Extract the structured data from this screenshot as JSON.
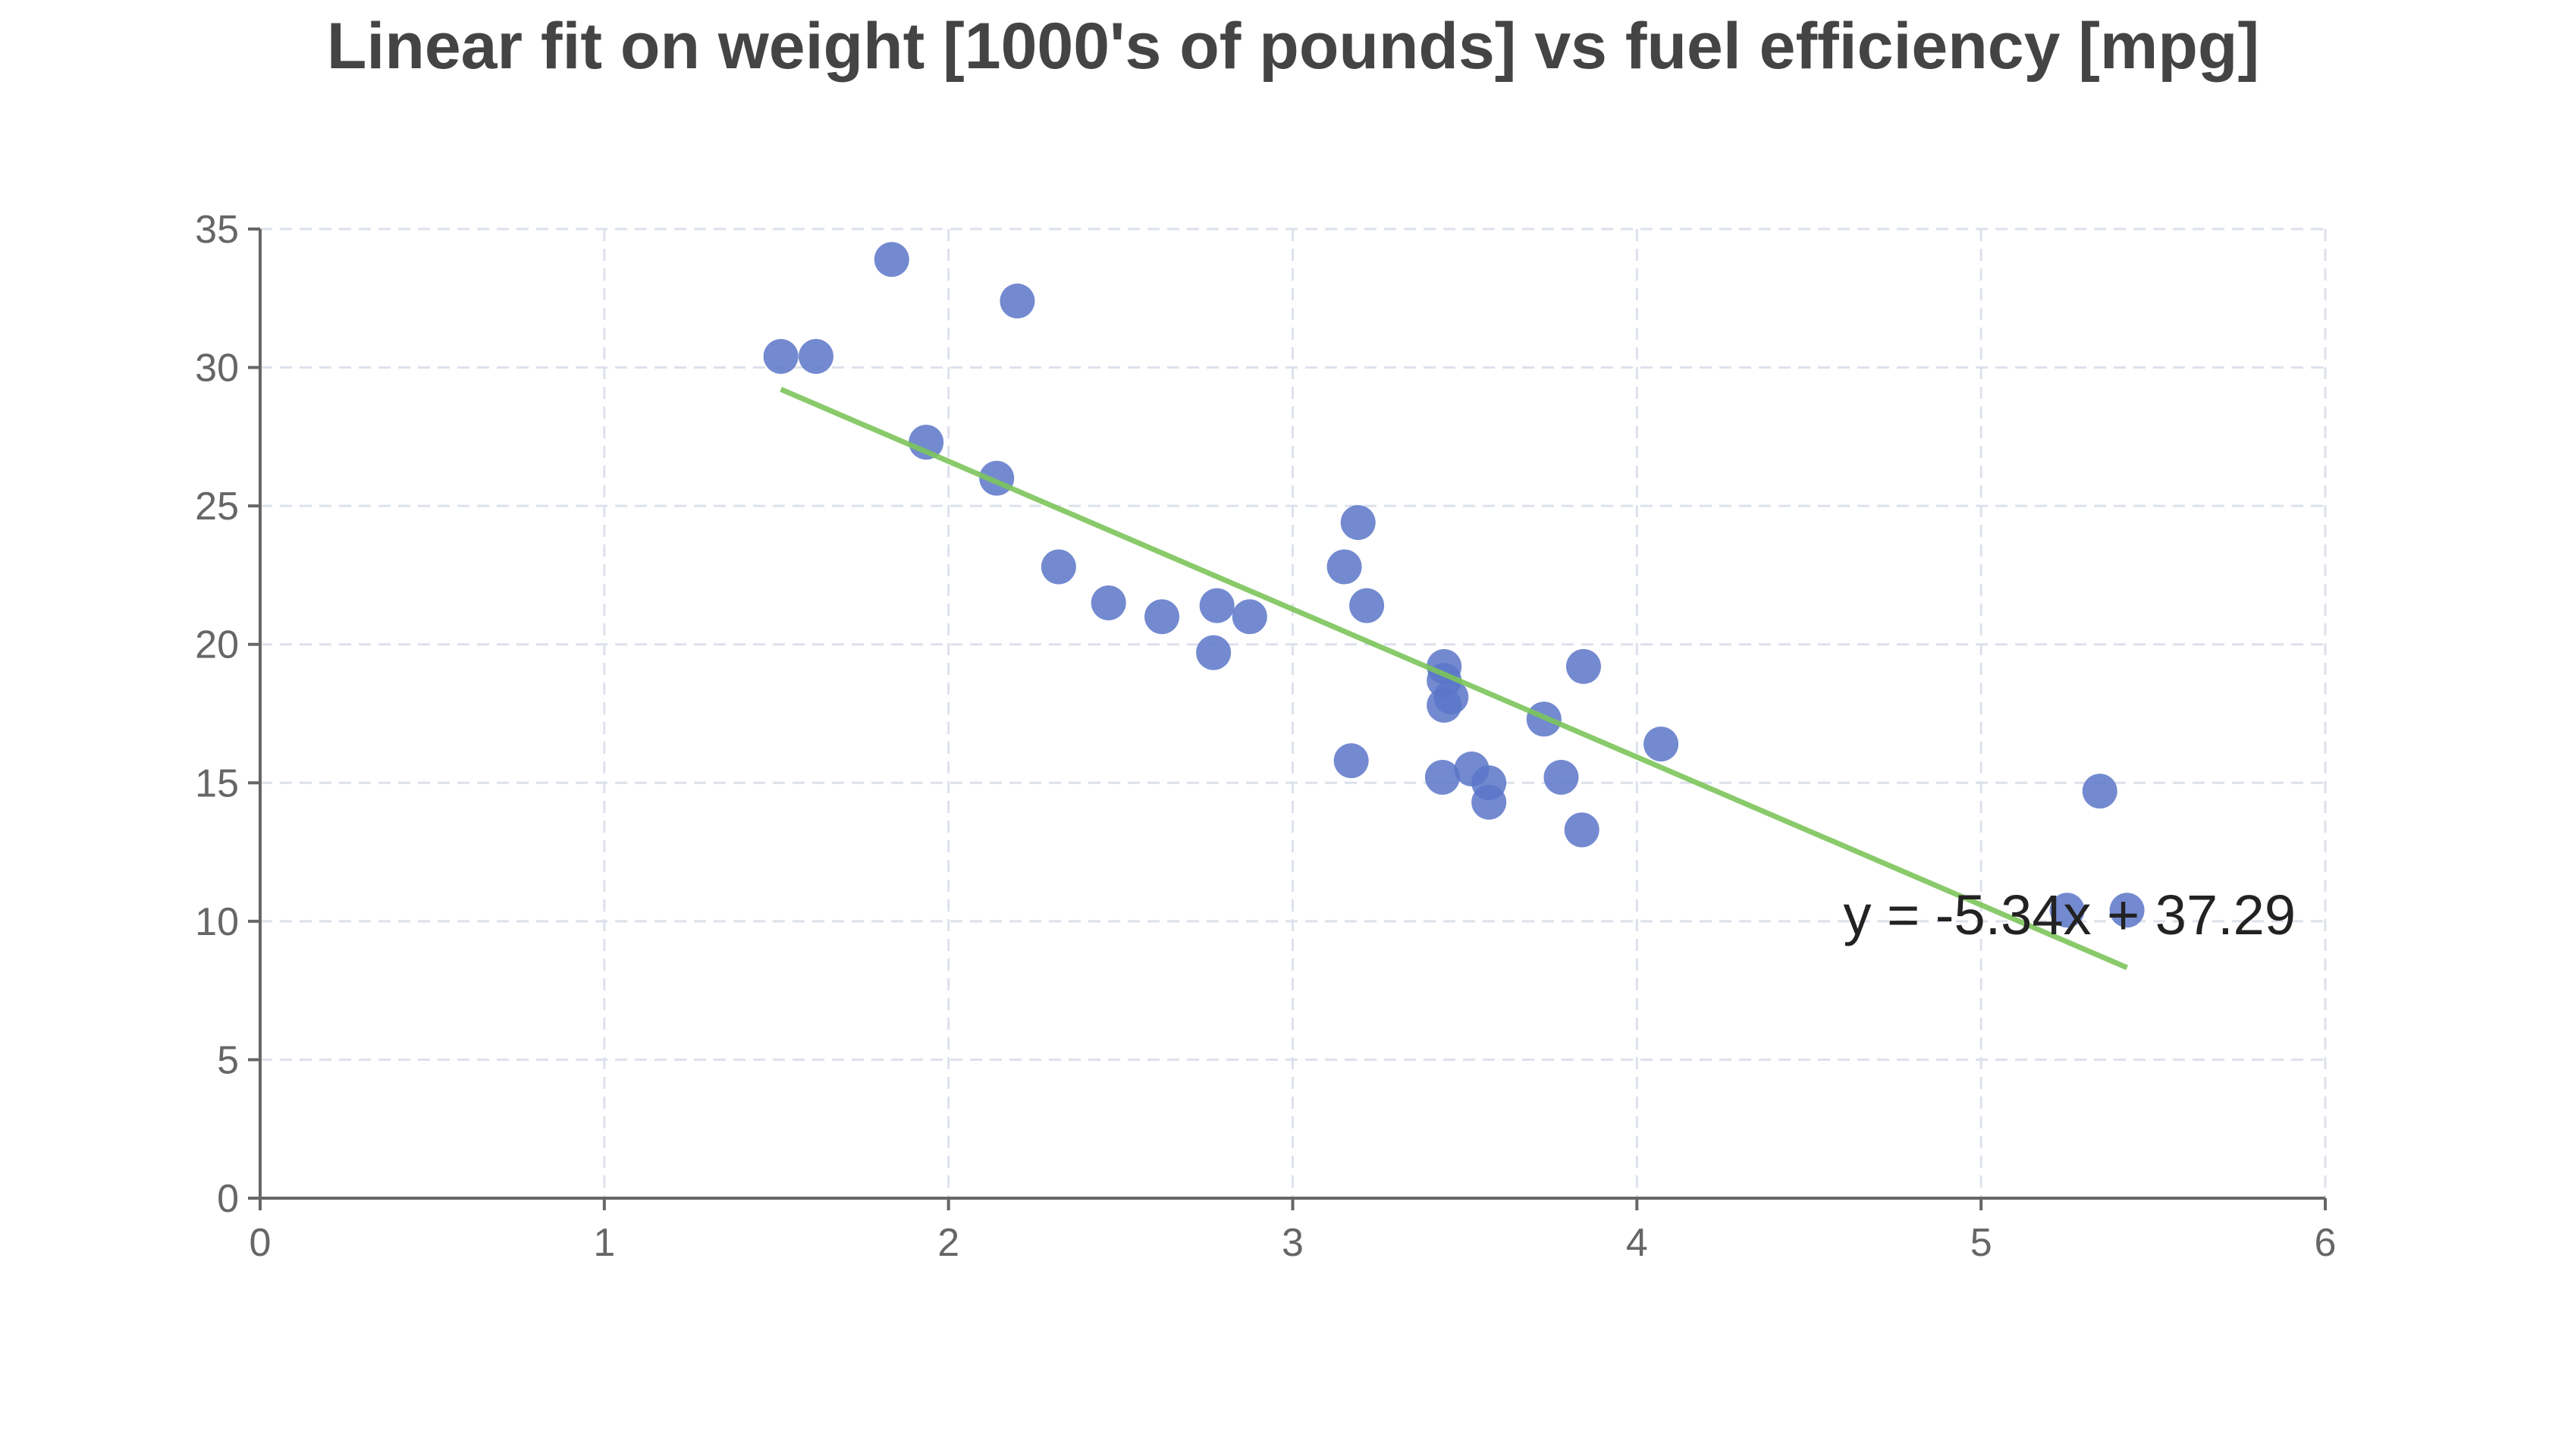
{
  "chart_data": {
    "type": "scatter",
    "title": "Linear fit on weight [1000's of pounds] vs fuel efficiency [mpg]",
    "xlabel": "",
    "ylabel": "",
    "xlim": [
      0,
      6
    ],
    "ylim": [
      0,
      35
    ],
    "xticks": [
      "0",
      "1",
      "2",
      "3",
      "4",
      "5",
      "6"
    ],
    "yticks": [
      "0",
      "5",
      "10",
      "15",
      "20",
      "25",
      "30",
      "35"
    ],
    "grid": true,
    "points": [
      [
        2.62,
        21.0
      ],
      [
        2.875,
        21.0
      ],
      [
        2.32,
        22.8
      ],
      [
        3.215,
        21.4
      ],
      [
        3.44,
        18.7
      ],
      [
        3.46,
        18.1
      ],
      [
        3.57,
        14.3
      ],
      [
        3.19,
        24.4
      ],
      [
        3.15,
        22.8
      ],
      [
        3.44,
        19.2
      ],
      [
        3.44,
        17.8
      ],
      [
        4.07,
        16.4
      ],
      [
        3.73,
        17.3
      ],
      [
        3.78,
        15.2
      ],
      [
        5.25,
        10.4
      ],
      [
        5.424,
        10.4
      ],
      [
        5.345,
        14.7
      ],
      [
        2.2,
        32.4
      ],
      [
        1.615,
        30.4
      ],
      [
        1.835,
        33.9
      ],
      [
        2.465,
        21.5
      ],
      [
        3.52,
        15.5
      ],
      [
        3.435,
        15.2
      ],
      [
        3.84,
        13.3
      ],
      [
        3.845,
        19.2
      ],
      [
        1.935,
        27.3
      ],
      [
        2.14,
        26.0
      ],
      [
        1.513,
        30.4
      ],
      [
        3.17,
        15.8
      ],
      [
        2.77,
        19.7
      ],
      [
        3.57,
        15.0
      ],
      [
        2.78,
        21.4
      ]
    ],
    "fit": {
      "slope": -5.34,
      "intercept": 37.29,
      "x_range": [
        1.513,
        5.424
      ]
    },
    "annotation": "y = -5.34x + 37.29",
    "colors": {
      "points": "#5a76c8",
      "fit": "#7cc45a"
    }
  }
}
